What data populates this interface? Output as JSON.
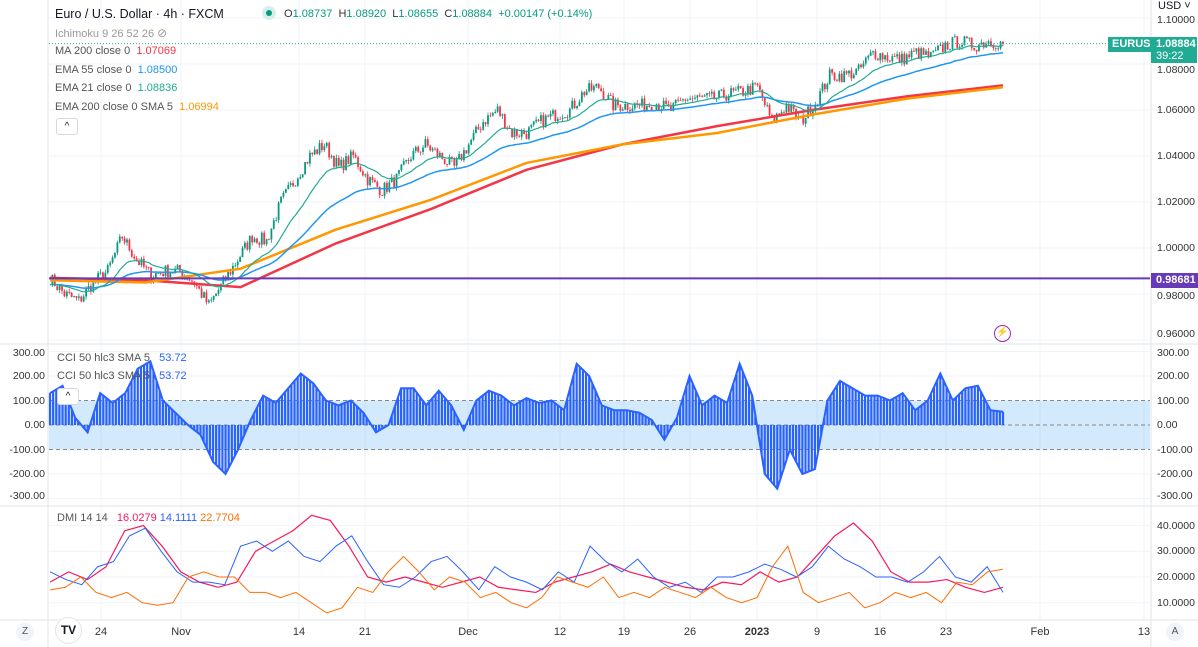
{
  "header": {
    "symbol": "Euro / U.S. Dollar · 4h · FXCM",
    "o_label": "O",
    "o": "1.08737",
    "h_label": "H",
    "h": "1.08920",
    "l_label": "L",
    "l": "1.08655",
    "c_label": "C",
    "c": "1.08884",
    "change": "+0.00147 (+0.14%)"
  },
  "indicators": {
    "ichimoku": "Ichimoku 9 26 52 26",
    "ma200": {
      "label": "MA 200 close 0",
      "value": "1.07069",
      "color": "#f23645"
    },
    "ema55": {
      "label": "EMA 55 close 0",
      "value": "1.08500",
      "color": "#2196f3"
    },
    "ema21": {
      "label": "EMA 21 close 0",
      "value": "1.08836",
      "color": "#22ab94"
    },
    "ema200": {
      "label": "EMA 200 close 0 SMA 5",
      "value": "1.06994",
      "color": "#ff9800"
    },
    "cci": {
      "label": "CCI 50 hlc3 SMA 5",
      "value": "53.72",
      "color": "#2962ff"
    },
    "dmi": {
      "label": "DMI 14 14",
      "plus": "16.0279",
      "minus": "14.1111",
      "adx": "22.7704"
    }
  },
  "price_axis": {
    "currency": "USD",
    "ticks": [
      "1.10000",
      "1.08000",
      "1.06000",
      "1.04000",
      "1.02000",
      "1.00000",
      "0.98000",
      "0.96000"
    ],
    "symbol_tag": "EURUSD",
    "last_price": "1.08884",
    "countdown": "39:22",
    "hline_price": "0.98681",
    "hline_color": "#673ab7"
  },
  "cci_axis": {
    "ticks": [
      "300.00",
      "200.00",
      "100.00",
      "0.00",
      "-100.00",
      "-200.00",
      "-300.00"
    ]
  },
  "dmi_axis": {
    "ticks": [
      "40.0000",
      "30.0000",
      "20.0000",
      "10.0000"
    ]
  },
  "time_axis": {
    "labels": [
      "24",
      "Nov",
      "14",
      "21",
      "Dec",
      "12",
      "19",
      "26",
      "2023",
      "9",
      "16",
      "23",
      "Feb",
      "13"
    ]
  },
  "buttons": {
    "collapse": "^",
    "z": "Z",
    "a": "A"
  },
  "chart_data": {
    "type": "candlestick",
    "title": "Euro / U.S. Dollar · 4h · FXCM",
    "ylim": [
      0.96,
      1.11
    ],
    "closes": [
      0.987,
      0.98,
      0.977,
      0.985,
      0.99,
      1.005,
      0.995,
      0.988,
      0.99,
      0.99,
      0.985,
      0.975,
      0.985,
      0.995,
      1.005,
      1.003,
      1.02,
      1.03,
      1.04,
      1.045,
      1.035,
      1.04,
      1.03,
      1.025,
      1.03,
      1.04,
      1.045,
      1.04,
      1.035,
      1.045,
      1.055,
      1.06,
      1.05,
      1.05,
      1.055,
      1.058,
      1.06,
      1.068,
      1.07,
      1.062,
      1.062,
      1.062,
      1.063,
      1.06,
      1.065,
      1.065,
      1.065,
      1.067,
      1.068,
      1.07,
      1.055,
      1.062,
      1.055,
      1.063,
      1.075,
      1.075,
      1.077,
      1.085,
      1.083,
      1.082,
      1.085,
      1.083,
      1.088,
      1.09,
      1.088,
      1.09,
      1.0888
    ],
    "ma200": [
      0.987,
      0.986,
      0.983,
      1.002,
      1.017,
      1.034,
      1.045,
      1.053,
      1.06,
      1.066,
      1.0707
    ],
    "ema200_sma5": [
      0.986,
      0.985,
      0.991,
      1.008,
      1.021,
      1.037,
      1.045,
      1.05,
      1.058,
      1.065,
      1.0699
    ],
    "cci": [
      130,
      160,
      30,
      -30,
      130,
      90,
      130,
      230,
      260,
      100,
      50,
      0,
      -40,
      -150,
      -200,
      -100,
      20,
      120,
      90,
      150,
      210,
      170,
      100,
      80,
      100,
      50,
      -30,
      0,
      150,
      150,
      80,
      140,
      80,
      -20,
      100,
      140,
      120,
      80,
      110,
      90,
      100,
      60,
      250,
      200,
      80,
      60,
      60,
      50,
      20,
      -60,
      30,
      200,
      80,
      120,
      90,
      250,
      120,
      -200,
      -260,
      -100,
      -200,
      -180,
      100,
      180,
      150,
      120,
      120,
      100,
      130,
      60,
      100,
      210,
      100,
      150,
      160,
      60,
      54
    ],
    "dmi_plus": [
      18,
      22,
      19,
      24,
      38,
      40,
      32,
      22,
      18,
      16,
      18,
      30,
      34,
      38,
      44,
      42,
      32,
      20,
      18,
      20,
      18,
      16,
      18,
      20,
      16,
      15,
      14,
      18,
      20,
      22,
      25,
      22,
      20,
      18,
      16,
      15,
      18,
      17,
      22,
      18,
      20,
      28,
      36,
      41,
      34,
      22,
      18,
      18,
      19,
      16,
      14,
      16
    ],
    "dmi_minus": [
      22,
      19,
      17,
      24,
      26,
      36,
      39,
      30,
      22,
      18,
      18,
      17,
      32,
      34,
      30,
      34,
      28,
      26,
      32,
      36,
      26,
      17,
      16,
      20,
      26,
      28,
      22,
      15,
      24,
      20,
      18,
      15,
      22,
      18,
      32,
      26,
      22,
      27,
      20,
      16,
      18,
      14,
      20,
      20,
      22,
      25,
      23,
      20,
      24,
      32,
      27,
      24,
      20,
      20,
      18,
      22,
      28,
      20,
      18,
      24,
      14
    ],
    "adx": [
      15,
      16,
      20,
      14,
      12,
      14,
      10,
      9,
      10,
      20,
      22,
      20,
      20,
      14,
      14,
      12,
      14,
      10,
      6,
      8,
      16,
      14,
      22,
      28,
      22,
      15,
      20,
      18,
      12,
      14,
      10,
      8,
      12,
      20,
      18,
      16,
      20,
      12,
      14,
      12,
      16,
      14,
      12,
      16,
      12,
      10,
      12,
      24,
      32,
      14,
      10,
      12,
      14,
      8,
      10,
      14,
      12,
      14,
      10,
      18,
      17,
      22,
      23
    ]
  }
}
